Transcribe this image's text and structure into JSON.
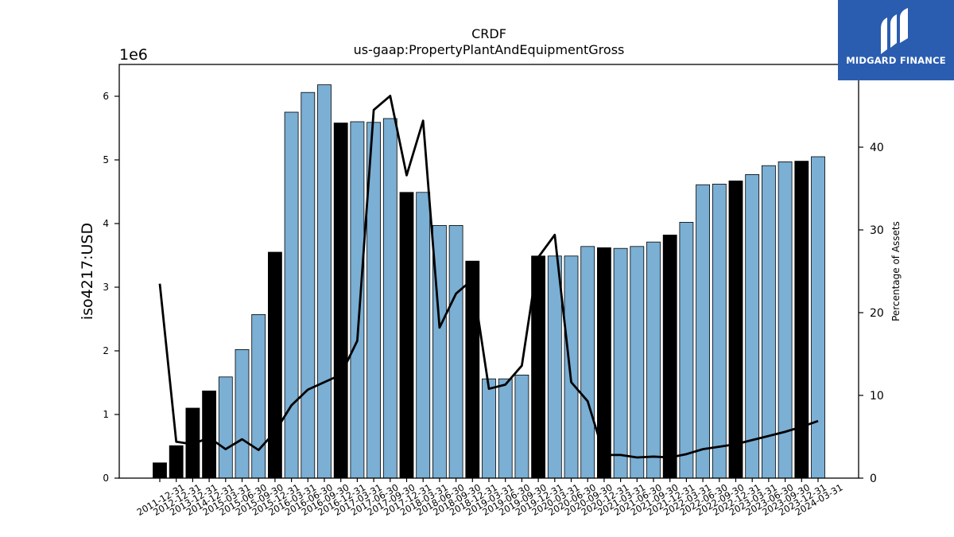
{
  "chart_data": {
    "type": "bar",
    "title": "CRDF",
    "subtitle": "us-gaap:PropertyPlantAndEquipmentGross",
    "ylabel": "iso4217:USD",
    "y2label": "Percentage of Assets",
    "y_offset_label": "1e6",
    "ylim": [
      0,
      6500000
    ],
    "y2lim": [
      0,
      50
    ],
    "yticks": [
      0,
      1,
      2,
      3,
      4,
      5,
      6
    ],
    "y2ticks": [
      0,
      10,
      20,
      30,
      40
    ],
    "categories": [
      "2011-12-31",
      "2012-12-31",
      "2013-12-31",
      "2014-12-31",
      "2015-03-31",
      "2015-06-30",
      "2015-09-30",
      "2015-12-31",
      "2016-03-31",
      "2016-06-30",
      "2016-09-30",
      "2016-12-31",
      "2017-03-31",
      "2017-06-30",
      "2017-09-30",
      "2017-12-31",
      "2018-03-31",
      "2018-06-30",
      "2018-09-30",
      "2018-12-31",
      "2019-03-31",
      "2019-06-30",
      "2019-09-30",
      "2019-12-31",
      "2020-03-31",
      "2020-06-30",
      "2020-09-30",
      "2020-12-31",
      "2021-03-31",
      "2021-06-30",
      "2021-09-30",
      "2021-12-31",
      "2022-03-31",
      "2022-06-30",
      "2022-09-30",
      "2022-12-31",
      "2023-03-31",
      "2023-06-30",
      "2023-09-30",
      "2023-12-31",
      "2024-03-31"
    ],
    "series": [
      {
        "type": "bar",
        "values": [
          240000,
          510000,
          1100000,
          1370000,
          1590000,
          2020000,
          2570000,
          3550000,
          5750000,
          6060000,
          6180000,
          5580000,
          5600000,
          5590000,
          5650000,
          4490000,
          4490000,
          3970000,
          3970000,
          3410000,
          1560000,
          1560000,
          1620000,
          3490000,
          3490000,
          3490000,
          3640000,
          3620000,
          3610000,
          3640000,
          3710000,
          3820000,
          4020000,
          4610000,
          4620000,
          4670000,
          4770000,
          4910000,
          4970000,
          4980000,
          5050000
        ],
        "annual": [
          true,
          true,
          true,
          true,
          false,
          false,
          false,
          true,
          false,
          false,
          false,
          true,
          false,
          false,
          false,
          true,
          false,
          false,
          false,
          true,
          false,
          false,
          false,
          true,
          false,
          false,
          false,
          true,
          false,
          false,
          false,
          true,
          false,
          false,
          false,
          true,
          false,
          false,
          false,
          true,
          false
        ]
      },
      {
        "type": "line",
        "axis": "secondary",
        "values": [
          23.5,
          4.4,
          4.1,
          4.9,
          3.5,
          4.7,
          3.4,
          5.6,
          8.8,
          10.7,
          11.6,
          12.5,
          16.6,
          44.5,
          46.2,
          36.6,
          43.2,
          18.2,
          22.3,
          24.0,
          10.8,
          11.3,
          13.6,
          26.7,
          29.4,
          11.6,
          9.3,
          2.8,
          2.8,
          2.5,
          2.6,
          2.5,
          2.9,
          3.5,
          3.8,
          4.1,
          4.6,
          5.1,
          5.6,
          6.2,
          6.9
        ]
      }
    ],
    "colors": {
      "bar_quarterly": "#7bafd4",
      "bar_annual": "#000000",
      "line": "#000000"
    },
    "grid": false
  },
  "logo": {
    "text": "MIDGARD FINANCE",
    "background": "#2a5db0"
  }
}
